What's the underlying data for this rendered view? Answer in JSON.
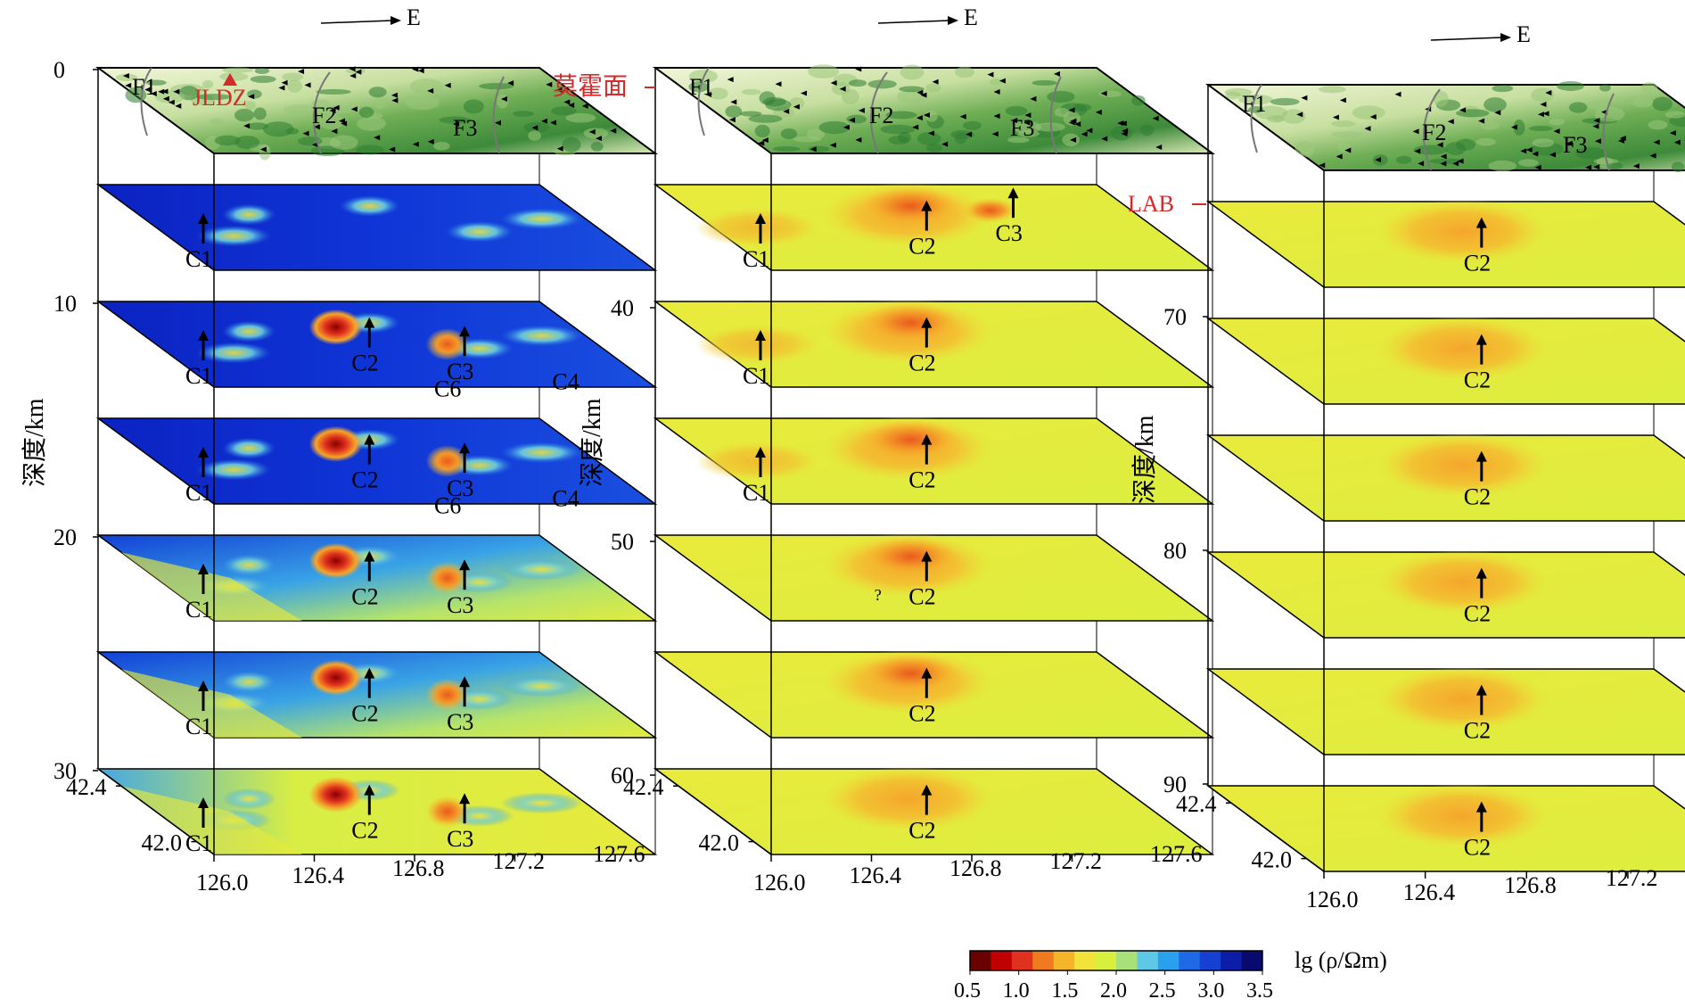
{
  "direction_label": "E",
  "depth_axis_label": "深度/km",
  "moho_label": "莫霍面",
  "lab_label": "LAB",
  "station_label": "JLDZ",
  "faults": [
    "F1",
    "F2",
    "F3"
  ],
  "lat_ticks": [
    "42.4",
    "42.0"
  ],
  "lon_ticks": [
    "126.0",
    "126.4",
    "126.8",
    "127.2",
    "127.6"
  ],
  "panels": [
    {
      "depth_ticks": [
        "0",
        "10",
        "20",
        "30"
      ],
      "slices": [
        {
          "labels": [
            "C1"
          ]
        },
        {
          "labels": [
            "C2",
            "C3",
            "C6",
            "C4",
            "C1"
          ]
        },
        {
          "labels": [
            "C2",
            "C3",
            "C6",
            "C4",
            "C1"
          ]
        },
        {
          "labels": [
            "C2",
            "C3",
            "C1"
          ]
        },
        {
          "labels": [
            "C2",
            "C3",
            "C1"
          ]
        },
        {
          "labels": [
            "C2",
            "C3",
            "C1"
          ]
        }
      ]
    },
    {
      "depth_ticks": [
        "40",
        "50",
        "60"
      ],
      "slices": [
        {
          "labels": [
            "C1",
            "C2",
            "C3"
          ]
        },
        {
          "labels": [
            "C1",
            "C2"
          ]
        },
        {
          "labels": [
            "C1",
            "C2"
          ]
        },
        {
          "labels": [
            "C2",
            "?"
          ]
        },
        {
          "labels": [
            "C2"
          ]
        },
        {
          "labels": [
            "C2"
          ]
        }
      ]
    },
    {
      "depth_ticks": [
        "70",
        "80",
        "90"
      ],
      "slices": [
        {
          "labels": [
            "C2"
          ]
        },
        {
          "labels": [
            "C2"
          ]
        },
        {
          "labels": [
            "C2"
          ]
        },
        {
          "labels": [
            "C2"
          ]
        },
        {
          "labels": [
            "C2"
          ]
        },
        {
          "labels": [
            "C2"
          ]
        }
      ]
    }
  ],
  "colorbar": {
    "label": "lg (ρ/Ωm)",
    "ticks": [
      "0.5",
      "1.0",
      "1.5",
      "2.0",
      "2.5",
      "3.0",
      "3.5"
    ],
    "colors": [
      "#6b0000",
      "#c00000",
      "#e0301e",
      "#f07a1e",
      "#f5b52a",
      "#f2e23a",
      "#d8ef3e",
      "#a8e07a",
      "#5ec8e6",
      "#2aa0ee",
      "#1e6ae6",
      "#1640d2",
      "#0c1ea8",
      "#0a0a6e"
    ]
  }
}
